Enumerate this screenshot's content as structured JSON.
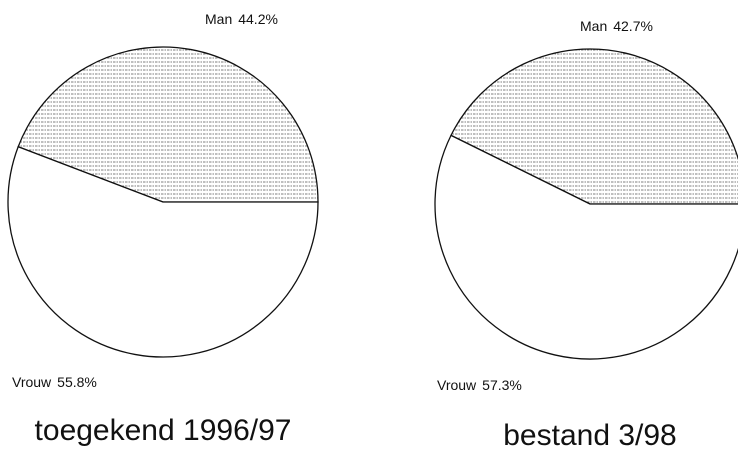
{
  "chart_data": [
    {
      "type": "pie",
      "title": "toegekend 1996/97",
      "categories": [
        "Man",
        "Vrouw"
      ],
      "values": [
        44.2,
        55.8
      ],
      "value_labels": [
        "44.2%",
        "55.8%"
      ]
    },
    {
      "type": "pie",
      "title": "bestand 3/98",
      "categories": [
        "Man",
        "Vrouw"
      ],
      "values": [
        42.7,
        57.3
      ],
      "value_labels": [
        "42.7%",
        "57.3%"
      ]
    }
  ]
}
